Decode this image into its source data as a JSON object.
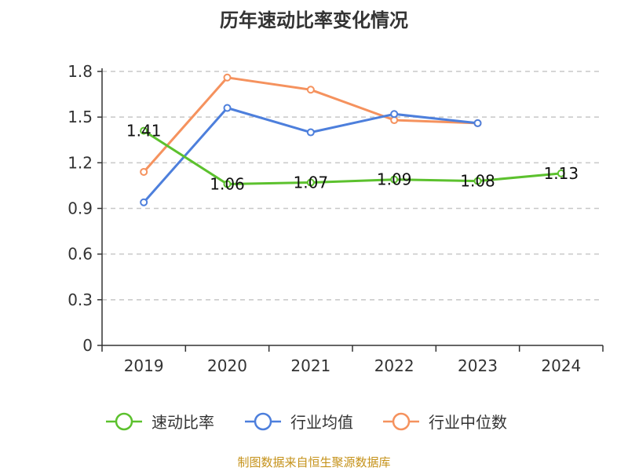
{
  "chart_data": {
    "type": "line",
    "title": "历年速动比率变化情况",
    "categories": [
      "2019",
      "2020",
      "2021",
      "2022",
      "2023",
      "2024"
    ],
    "ylim": [
      0,
      1.8
    ],
    "yticks": [
      "0",
      "0.3",
      "0.6",
      "0.9",
      "1.2",
      "1.5",
      "1.8"
    ],
    "grid": true,
    "legend_position": "bottom",
    "series": [
      {
        "name": "速动比率",
        "color": "#5cc12e",
        "values": [
          1.41,
          1.06,
          1.07,
          1.09,
          1.08,
          1.13
        ],
        "labels": [
          "1.41",
          "1.06",
          "1.07",
          "1.09",
          "1.08",
          "1.13"
        ]
      },
      {
        "name": "行业均值",
        "color": "#4d7fdc",
        "values": [
          0.94,
          1.56,
          1.4,
          1.52,
          1.46,
          null
        ]
      },
      {
        "name": "行业中位数",
        "color": "#f5925e",
        "values": [
          1.14,
          1.76,
          1.68,
          1.48,
          1.46,
          null
        ]
      }
    ],
    "source": "制图数据来自恒生聚源数据库"
  }
}
